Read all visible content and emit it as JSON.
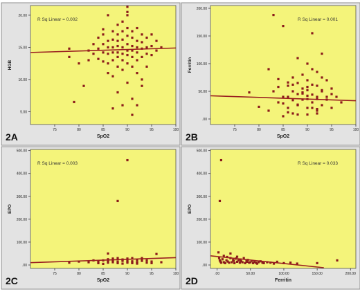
{
  "chart_data": [
    {
      "panel_label": "2A",
      "type": "scatter",
      "xlabel": "SpO2",
      "ylabel": "HGB",
      "annotation": "R Sq Linear = 0.002",
      "xlim": [
        70,
        100
      ],
      "ylim": [
        3.0,
        21.5
      ],
      "xticks": [
        75,
        80,
        85,
        90,
        95,
        100
      ],
      "yticks": [
        5,
        10,
        15,
        20
      ],
      "xtick_labels": [
        "75",
        "80",
        "85",
        "90",
        "95",
        "100"
      ],
      "ytick_labels": [
        "5.00",
        "10.00",
        "15.00",
        "20.00"
      ],
      "fit_line": {
        "x": [
          70,
          100
        ],
        "y": [
          14.2,
          14.9
        ]
      },
      "x": [
        78,
        78,
        79,
        80,
        81,
        82,
        82,
        83,
        83,
        84,
        84,
        84,
        85,
        85,
        85,
        85,
        86,
        86,
        86,
        86,
        86,
        87,
        87,
        87,
        87,
        87,
        87,
        88,
        88,
        88,
        88,
        88,
        88,
        88,
        89,
        89,
        89,
        89,
        89,
        89,
        89,
        90,
        90,
        90,
        90,
        90,
        90,
        90,
        90,
        91,
        91,
        91,
        91,
        91,
        91,
        91,
        92,
        92,
        92,
        92,
        92,
        92,
        93,
        93,
        93,
        93,
        93,
        94,
        94,
        94,
        94,
        95,
        95,
        95,
        96,
        96,
        97,
        86,
        90,
        88,
        92,
        87,
        91,
        93,
        89,
        85,
        90
      ],
      "y": [
        14.8,
        13.5,
        6.5,
        12.5,
        9.0,
        14.5,
        13.0,
        15.5,
        14.0,
        16.5,
        14.8,
        13.2,
        17.0,
        15.5,
        14.2,
        12.8,
        16.0,
        15.0,
        14.0,
        12.5,
        11.0,
        17.5,
        16.2,
        15.0,
        14.2,
        13.0,
        10.5,
        18.5,
        17.0,
        16.0,
        15.2,
        14.2,
        13.5,
        12.0,
        19.0,
        17.5,
        16.2,
        15.0,
        14.0,
        13.0,
        11.5,
        20.5,
        18.0,
        16.8,
        15.5,
        14.5,
        13.8,
        12.5,
        9.5,
        17.5,
        16.5,
        15.2,
        14.5,
        13.5,
        12.0,
        7.0,
        18.0,
        16.0,
        15.0,
        14.2,
        13.0,
        11.0,
        17.0,
        15.8,
        14.8,
        13.5,
        10.0,
        16.5,
        15.0,
        14.0,
        12.0,
        17.0,
        15.2,
        13.8,
        16.0,
        14.5,
        15.0,
        20.0,
        21.3,
        8.0,
        6.0,
        5.5,
        4.5,
        9.0,
        6.0,
        17.8,
        20.0
      ]
    },
    {
      "panel_label": "2B",
      "type": "scatter",
      "xlabel": "SpO2",
      "ylabel": "Ferritin",
      "annotation": "R Sq Linear = 0.001",
      "xlim": [
        70,
        100
      ],
      "ylim": [
        -10,
        205
      ],
      "xticks": [
        75,
        80,
        85,
        90,
        95,
        100
      ],
      "yticks": [
        0,
        50,
        100,
        150,
        200
      ],
      "xtick_labels": [
        "75",
        "80",
        "85",
        "90",
        "95",
        "100"
      ],
      "ytick_labels": [
        ".00",
        "50.00",
        "100.00",
        "150.00",
        "200.00"
      ],
      "fit_line": {
        "x": [
          70,
          100
        ],
        "y": [
          42,
          33
        ]
      },
      "x": [
        78,
        80,
        82,
        83,
        84,
        84,
        85,
        85,
        86,
        86,
        86,
        87,
        87,
        87,
        88,
        88,
        88,
        88,
        89,
        89,
        89,
        90,
        90,
        90,
        90,
        90,
        91,
        91,
        91,
        91,
        92,
        92,
        92,
        92,
        93,
        93,
        93,
        94,
        94,
        95,
        95,
        96,
        97,
        83,
        85,
        87,
        89,
        90,
        91,
        92,
        93,
        94,
        86,
        88,
        84,
        90,
        92,
        82,
        87,
        89,
        91,
        93,
        95,
        88,
        86,
        90,
        92,
        85
      ],
      "y": [
        48,
        22,
        15,
        188,
        30,
        72,
        5,
        168,
        60,
        40,
        20,
        75,
        50,
        10,
        110,
        65,
        45,
        25,
        80,
        55,
        35,
        100,
        70,
        58,
        42,
        20,
        155,
        90,
        62,
        30,
        85,
        60,
        40,
        15,
        118,
        50,
        25,
        70,
        35,
        55,
        20,
        40,
        30,
        50,
        28,
        62,
        48,
        36,
        44,
        18,
        52,
        40,
        12,
        8,
        58,
        8,
        36,
        90,
        34,
        46,
        20,
        75,
        45,
        26,
        66,
        52,
        10,
        40
      ]
    },
    {
      "panel_label": "2C",
      "type": "scatter",
      "xlabel": "SpO2",
      "ylabel": "EPO",
      "annotation": "R Sq Linear = 0.003",
      "xlim": [
        70,
        100
      ],
      "ylim": [
        -15,
        505
      ],
      "xticks": [
        75,
        80,
        85,
        90,
        95,
        100
      ],
      "yticks": [
        0,
        100,
        200,
        300,
        400,
        500
      ],
      "xtick_labels": [
        "75",
        "80",
        "85",
        "90",
        "95",
        "100"
      ],
      "ytick_labels": [
        ".00",
        "100.00",
        "200.00",
        "300.00",
        "400.00",
        "500.00"
      ],
      "fit_line": {
        "x": [
          70,
          100
        ],
        "y": [
          10,
          32
        ]
      },
      "x": [
        78,
        80,
        82,
        83,
        84,
        84,
        85,
        85,
        86,
        86,
        86,
        87,
        87,
        87,
        88,
        88,
        88,
        89,
        89,
        89,
        90,
        90,
        90,
        90,
        91,
        91,
        91,
        92,
        92,
        92,
        93,
        93,
        94,
        94,
        95,
        95,
        96,
        97,
        86,
        88,
        90,
        92,
        89,
        87,
        93,
        91
      ],
      "y": [
        10,
        15,
        12,
        20,
        8,
        16,
        5,
        20,
        10,
        18,
        25,
        12,
        22,
        28,
        8,
        15,
        30,
        6,
        18,
        24,
        10,
        20,
        28,
        14,
        8,
        30,
        16,
        12,
        22,
        6,
        18,
        26,
        10,
        20,
        15,
        8,
        48,
        12,
        50,
        280,
        458,
        12,
        22,
        18,
        30,
        12
      ]
    },
    {
      "panel_label": "2D",
      "type": "scatter",
      "xlabel": "Ferritin",
      "ylabel": "EPO",
      "annotation": "R Sq Linear = 0.033",
      "xlim": [
        -10,
        208
      ],
      "ylim": [
        -15,
        505
      ],
      "xticks": [
        0,
        50,
        100,
        150,
        200
      ],
      "yticks": [
        0,
        100,
        200,
        300,
        400,
        500
      ],
      "xtick_labels": [
        ".00",
        "50.00",
        "100.00",
        "150.00",
        "200.00"
      ],
      "ytick_labels": [
        ".00",
        "100.00",
        "200.00",
        "300.00",
        "400.00",
        "500.00"
      ],
      "fit_line": {
        "x": [
          -10,
          160
        ],
        "y": [
          40,
          -12
        ]
      },
      "x": [
        2,
        3,
        4,
        5,
        6,
        8,
        10,
        10,
        12,
        14,
        15,
        16,
        18,
        20,
        20,
        22,
        24,
        25,
        26,
        28,
        30,
        30,
        32,
        34,
        35,
        36,
        38,
        40,
        42,
        44,
        45,
        46,
        48,
        50,
        52,
        54,
        56,
        58,
        60,
        62,
        65,
        68,
        70,
        75,
        80,
        85,
        90,
        100,
        110,
        120,
        150,
        180,
        4,
        6
      ],
      "y": [
        55,
        30,
        20,
        15,
        10,
        25,
        40,
        12,
        8,
        20,
        35,
        15,
        10,
        30,
        50,
        12,
        22,
        18,
        8,
        28,
        14,
        36,
        20,
        10,
        24,
        16,
        12,
        30,
        8,
        18,
        14,
        22,
        10,
        12,
        18,
        8,
        14,
        10,
        6,
        12,
        16,
        10,
        8,
        12,
        10,
        6,
        14,
        8,
        10,
        6,
        8,
        20,
        280,
        458
      ]
    }
  ]
}
